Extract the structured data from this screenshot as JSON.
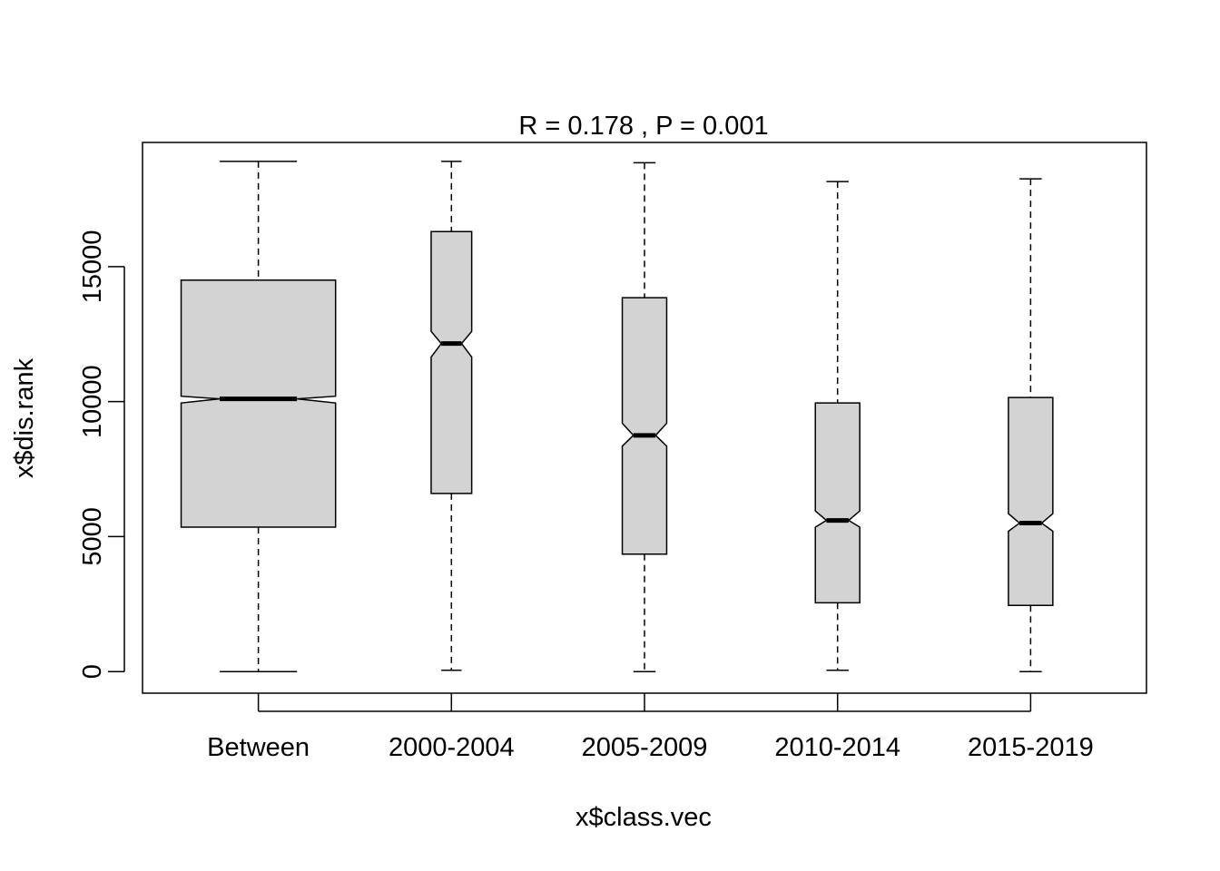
{
  "chart_data": {
    "type": "boxplot",
    "title": "R =  0.178 ,  P =  0.001",
    "xlabel": "x$class.vec",
    "ylabel": "x$dis.rank",
    "categories": [
      "Between",
      "2000-2004",
      "2005-2009",
      "2010-2014",
      "2015-2019"
    ],
    "ylim": [
      -800,
      19600
    ],
    "yticks": [
      0,
      5000,
      10000,
      15000
    ],
    "grid": false,
    "notched": true,
    "box_fill": "#d3d3d3",
    "boxes": [
      {
        "name": "Between",
        "min": 0,
        "q1": 5350,
        "median": 10100,
        "q3": 14500,
        "max": 18900,
        "notch_low": 9950,
        "notch_high": 10200,
        "width": 0.8
      },
      {
        "name": "2000-2004",
        "min": 50,
        "q1": 6600,
        "median": 12150,
        "q3": 16300,
        "max": 18900,
        "notch_low": 11650,
        "notch_high": 12600,
        "width": 0.21
      },
      {
        "name": "2005-2009",
        "min": 0,
        "q1": 4350,
        "median": 8750,
        "q3": 13850,
        "max": 18850,
        "notch_low": 8350,
        "notch_high": 9200,
        "width": 0.23
      },
      {
        "name": "2010-2014",
        "min": 50,
        "q1": 2550,
        "median": 5600,
        "q3": 9950,
        "max": 18150,
        "notch_low": 5350,
        "notch_high": 5950,
        "width": 0.23
      },
      {
        "name": "2015-2019",
        "min": 0,
        "q1": 2450,
        "median": 5500,
        "q3": 10150,
        "max": 18250,
        "notch_low": 5200,
        "notch_high": 5850,
        "width": 0.23
      }
    ]
  }
}
